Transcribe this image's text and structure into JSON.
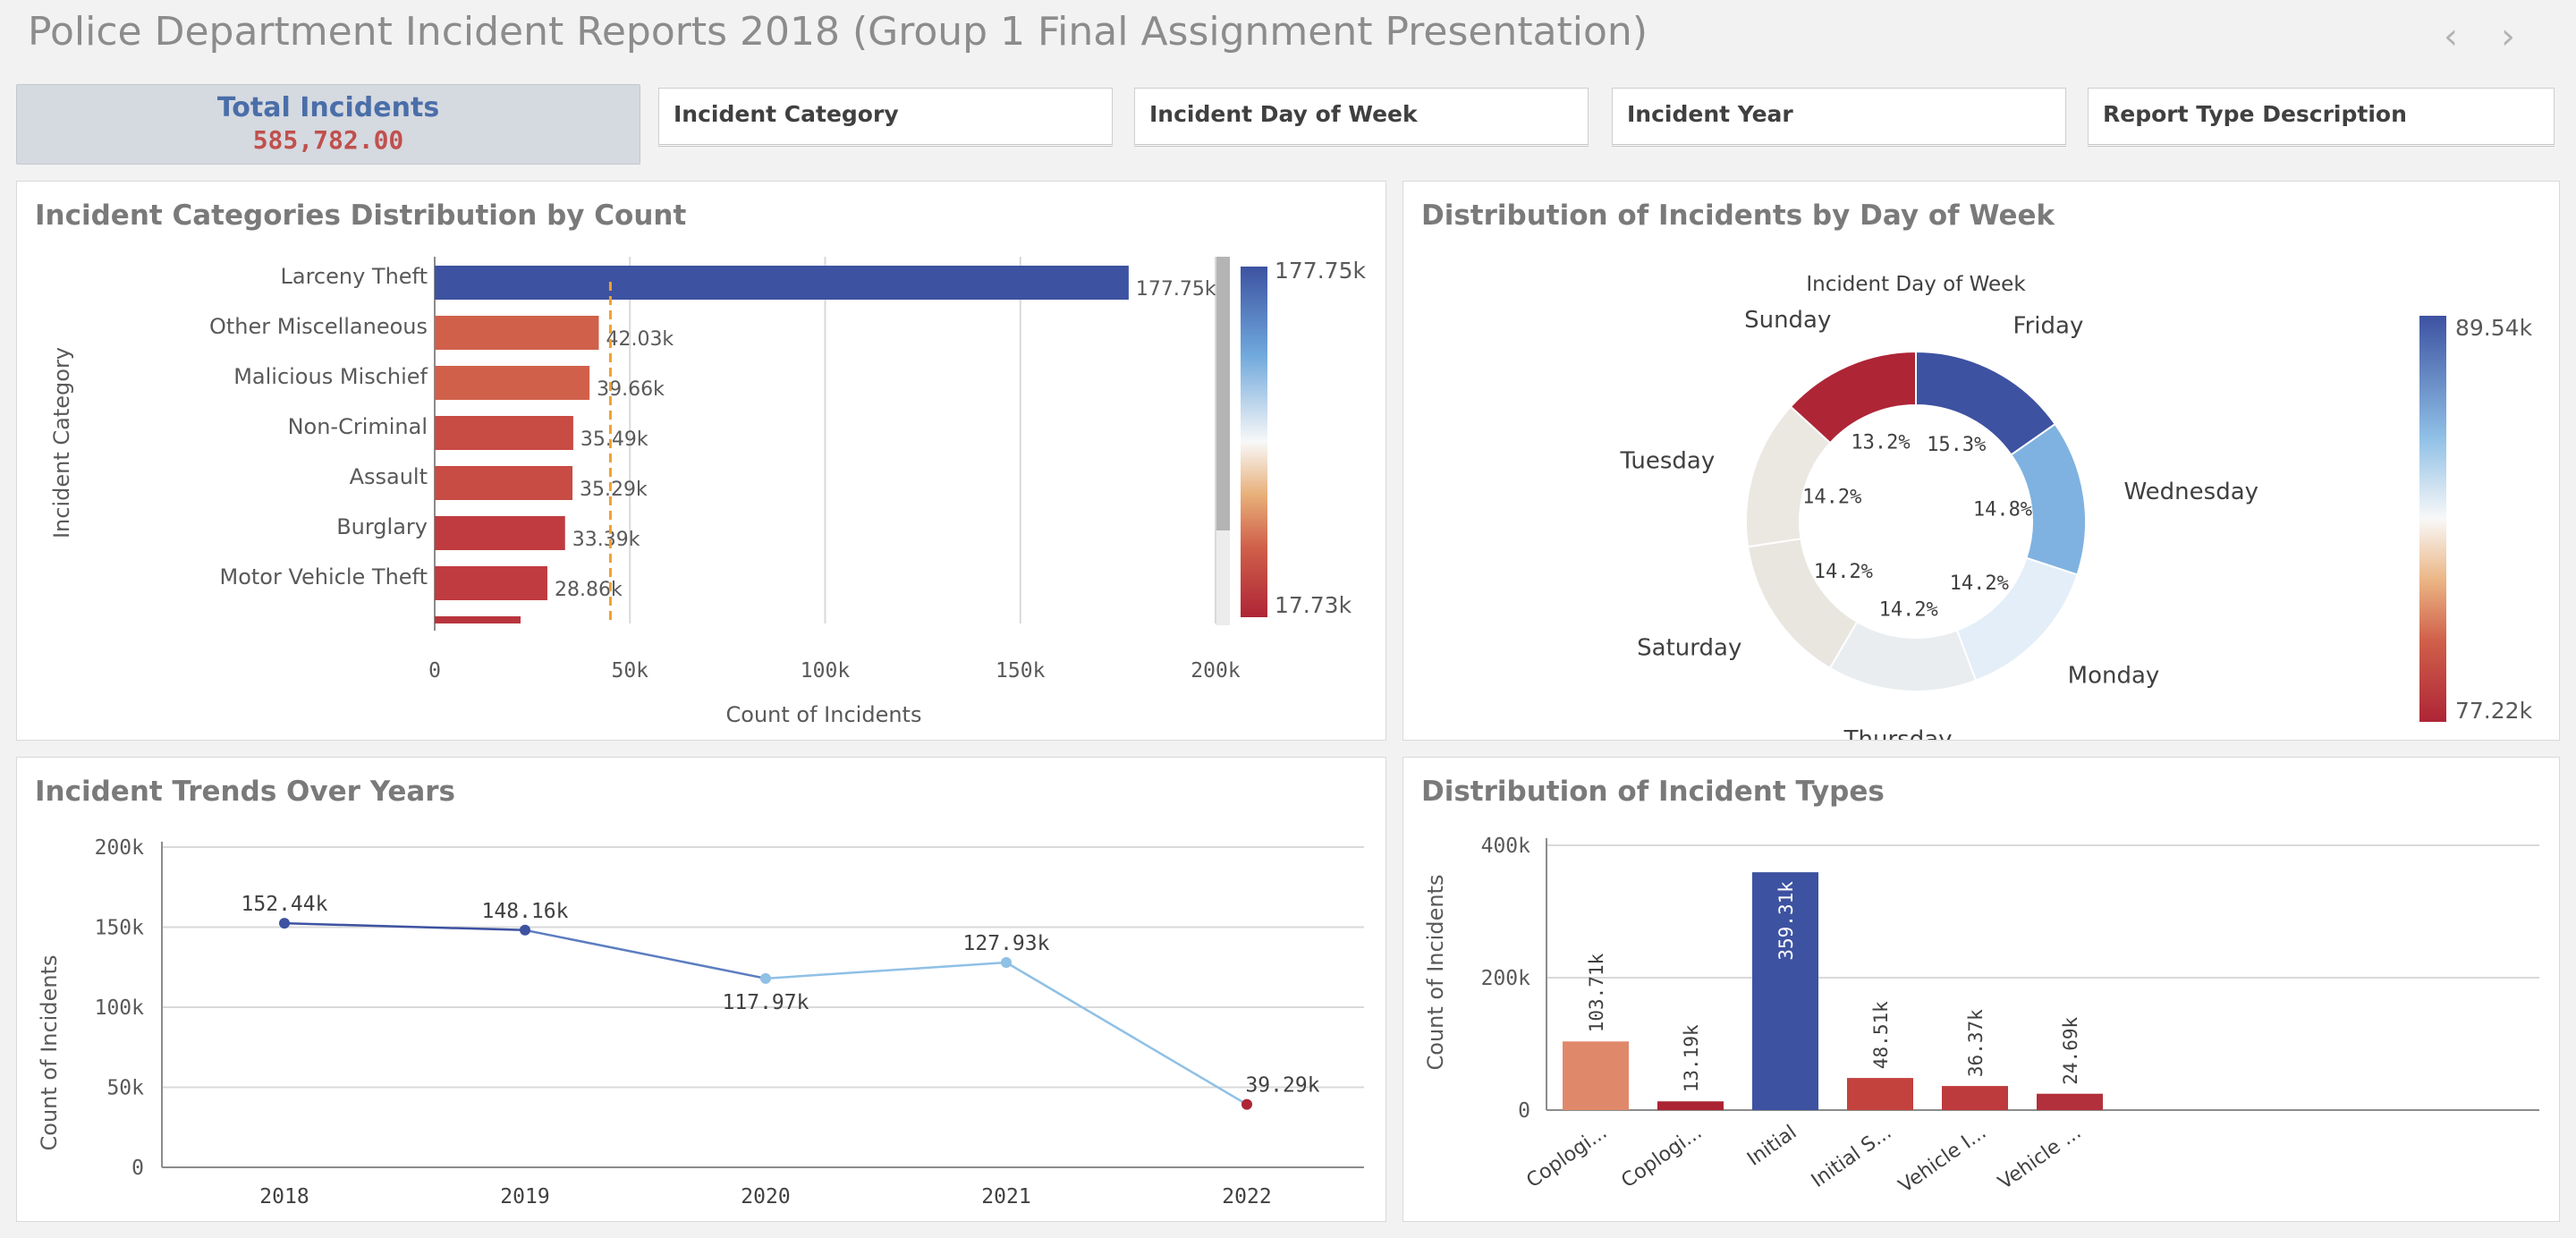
{
  "app": {
    "title": "Police Department Incident Reports 2018 (Group 1 Final Assignment Presentation)",
    "prev_icon": "chevron-left-icon",
    "next_icon": "chevron-right-icon"
  },
  "kpi": {
    "label": "Total Incidents",
    "value": "585,782.00"
  },
  "filters": [
    "Incident Category",
    "Incident Day of Week",
    "Incident Year",
    "Report Type Description"
  ],
  "colors": {
    "accent_blue": "#3d52a1",
    "accent_red": "#b2283b",
    "mid_red": "#d0604a",
    "ref_line": "#f0a030"
  },
  "chart_data": [
    {
      "type": "bar",
      "orientation": "horizontal",
      "title": "Incident Categories Distribution by Count",
      "xlabel": "Count of Incidents",
      "ylabel": "Incident Category",
      "xlim": [
        0,
        200000
      ],
      "x_ticks": [
        "0",
        "50k",
        "100k",
        "150k",
        "200k"
      ],
      "categories": [
        "Larceny Theft",
        "Other Miscellaneous",
        "Malicious Mischief",
        "Non-Criminal",
        "Assault",
        "Burglary",
        "Motor Vehicle Theft"
      ],
      "values": [
        177750,
        42030,
        39660,
        35490,
        35290,
        33390,
        28860
      ],
      "value_labels": [
        "177.75k",
        "42.03k",
        "39.66k",
        "35.49k",
        "35.29k",
        "33.39k",
        "28.86k"
      ],
      "partial_next_value": 22000,
      "reference_line": 45000,
      "legend": {
        "type": "gradient",
        "max": "177.75k",
        "min": "17.73k"
      }
    },
    {
      "type": "pie",
      "variant": "donut",
      "title": "Distribution of Incidents by Day of Week",
      "subtitle": "Incident Day of Week",
      "slices": [
        {
          "label": "Friday",
          "value": 15.3,
          "pct": "15.3%",
          "color": "#3d52a1"
        },
        {
          "label": "Wednesday",
          "value": 14.8,
          "pct": "14.8%",
          "color": "#7fb2e0"
        },
        {
          "label": "Monday",
          "value": 14.2,
          "pct": "14.2%",
          "color": "#e3eef8"
        },
        {
          "label": "Thursday",
          "value": 14.2,
          "pct": "14.2%",
          "color": "#e9edef"
        },
        {
          "label": "Saturday",
          "value": 14.2,
          "pct": "14.2%",
          "color": "#e9e6e0"
        },
        {
          "label": "Tuesday",
          "value": 14.2,
          "pct": "14.2%",
          "color": "#ebe8e2"
        },
        {
          "label": "Sunday",
          "value": 13.2,
          "pct": "13.2%",
          "color": "#ae2536"
        }
      ],
      "legend": {
        "type": "gradient",
        "max": "89.54k",
        "min": "77.22k"
      }
    },
    {
      "type": "line",
      "title": "Incident Trends Over Years",
      "ylabel": "Count of Incidents",
      "ylim": [
        0,
        200000
      ],
      "y_ticks": [
        "0",
        "50k",
        "100k",
        "150k",
        "200k"
      ],
      "x": [
        "2018",
        "2019",
        "2020",
        "2021",
        "2022"
      ],
      "values": [
        152440,
        148160,
        117970,
        127930,
        39290
      ],
      "value_labels": [
        "152.44k",
        "148.16k",
        "117.97k",
        "127.93k",
        "39.29k"
      ],
      "point_colors": [
        "#3d52a1",
        "#3d52a1",
        "#8fc0e6",
        "#8fc0e6",
        "#ae2536"
      ]
    },
    {
      "type": "bar",
      "title": "Distribution of Incident Types",
      "ylabel": "Count of Incidents",
      "ylim": [
        0,
        400000
      ],
      "y_ticks": [
        "0",
        "200k",
        "400k"
      ],
      "categories": [
        "Coplogi...",
        "Coplogi...",
        "Initial",
        "Initial S...",
        "Vehicle I...",
        "Vehicle ..."
      ],
      "values": [
        103710,
        13190,
        359310,
        48510,
        36370,
        24690
      ],
      "value_labels": [
        "103.71k",
        "13.19k",
        "359.31k",
        "48.51k",
        "36.37k",
        "24.69k"
      ],
      "colors": [
        "#e0896a",
        "#ab2434",
        "#3d52a1",
        "#c3423e",
        "#bd3a3d",
        "#b2303b"
      ]
    }
  ]
}
